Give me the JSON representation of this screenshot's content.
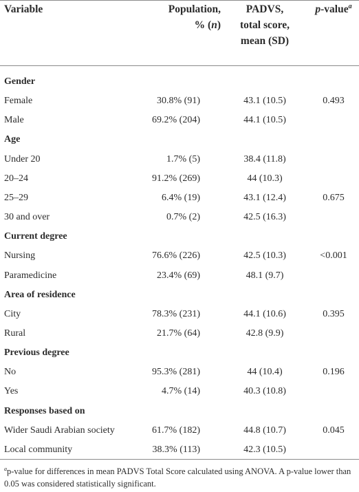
{
  "header": {
    "variable": "Variable",
    "population_line1": "Population,",
    "population_line2_prefix": "% (",
    "population_line2_n": "n",
    "population_line2_suffix": ")",
    "padvs_line1": "PADVS,",
    "padvs_line2": "total score,",
    "padvs_line3": "mean (SD)",
    "pvalue_p": "p",
    "pvalue_rest": "-value",
    "pvalue_sup": "a"
  },
  "rows": [
    {
      "type": "group",
      "label": "Gender"
    },
    {
      "type": "data",
      "label": "Female",
      "pop": "30.8% (91)",
      "score": "43.1 (10.5)",
      "pval": "0.493"
    },
    {
      "type": "data",
      "label": "Male",
      "pop": "69.2% (204)",
      "score": "44.1 (10.5)",
      "pval": ""
    },
    {
      "type": "group",
      "label": "Age"
    },
    {
      "type": "data",
      "label": "Under 20",
      "pop": "1.7% (5)",
      "score": "38.4 (11.8)",
      "pval": ""
    },
    {
      "type": "data",
      "label": "20–24",
      "pop": "91.2% (269)",
      "score": "44 (10.3)",
      "pval": ""
    },
    {
      "type": "data",
      "label": "25–29",
      "pop": "6.4% (19)",
      "score": "43.1 (12.4)",
      "pval": "0.675"
    },
    {
      "type": "data",
      "label": "30 and over",
      "pop": "0.7% (2)",
      "score": "42.5 (16.3)",
      "pval": ""
    },
    {
      "type": "group",
      "label": "Current degree"
    },
    {
      "type": "data",
      "label": "Nursing",
      "pop": "76.6% (226)",
      "score": "42.5 (10.3)",
      "pval": "<0.001"
    },
    {
      "type": "data",
      "label": "Paramedicine",
      "pop": "23.4% (69)",
      "score": "48.1 (9.7)",
      "pval": ""
    },
    {
      "type": "group",
      "label": "Area of residence"
    },
    {
      "type": "data",
      "label": "City",
      "pop": "78.3% (231)",
      "score": "44.1 (10.6)",
      "pval": "0.395"
    },
    {
      "type": "data",
      "label": "Rural",
      "pop": "21.7% (64)",
      "score": "42.8 (9.9)",
      "pval": ""
    },
    {
      "type": "group",
      "label": "Previous degree"
    },
    {
      "type": "data",
      "label": "No",
      "pop": "95.3% (281)",
      "score": "44 (10.4)",
      "pval": "0.196"
    },
    {
      "type": "data",
      "label": "Yes",
      "pop": "4.7% (14)",
      "score": "40.3 (10.8)",
      "pval": ""
    },
    {
      "type": "group",
      "label": "Responses based on"
    },
    {
      "type": "data",
      "label": "Wider Saudi Arabian society",
      "pop": "61.7% (182)",
      "score": "44.8 (10.7)",
      "pval": "0.045"
    },
    {
      "type": "data",
      "label": "Local community",
      "pop": "38.3% (113)",
      "score": "42.3 (10.5)",
      "pval": ""
    }
  ],
  "footnote": {
    "sup": "a",
    "text": "p-value for differences in mean PADVS Total Score calculated using ANOVA. A p-value lower than 0.05 was considered statistically significant."
  }
}
